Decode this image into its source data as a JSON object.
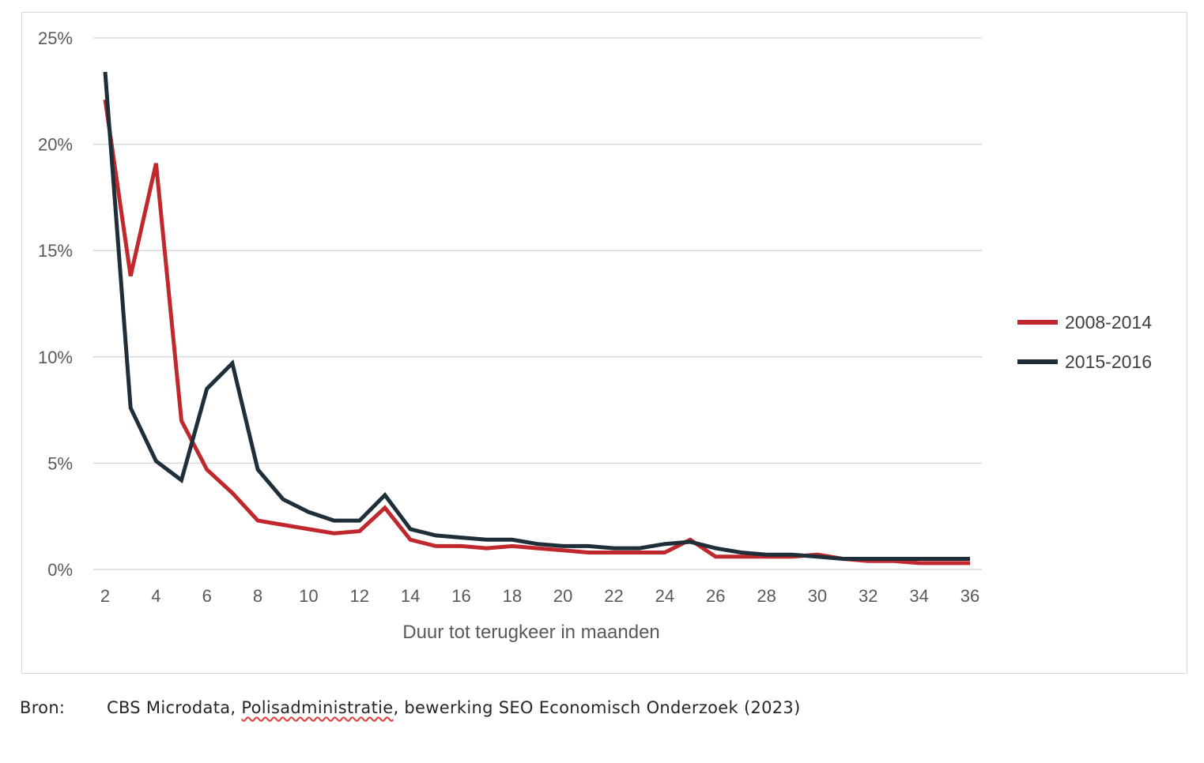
{
  "chart_data": {
    "type": "line",
    "title": "",
    "xlabel": "Duur tot terugkeer  in maanden",
    "ylabel": "",
    "ylim": [
      0,
      25
    ],
    "xlim": [
      2,
      36
    ],
    "grid": true,
    "legend_position": "right",
    "y_ticks": [
      "0%",
      "5%",
      "10%",
      "15%",
      "20%",
      "25%"
    ],
    "y_tick_values": [
      0,
      5,
      10,
      15,
      20,
      25
    ],
    "x_ticks": [
      "2",
      "4",
      "6",
      "8",
      "10",
      "12",
      "14",
      "16",
      "18",
      "20",
      "22",
      "24",
      "26",
      "28",
      "30",
      "32",
      "34",
      "36"
    ],
    "x_tick_values": [
      2,
      4,
      6,
      8,
      10,
      12,
      14,
      16,
      18,
      20,
      22,
      24,
      26,
      28,
      30,
      32,
      34,
      36
    ],
    "x": [
      2,
      3,
      4,
      5,
      6,
      7,
      8,
      9,
      10,
      11,
      12,
      13,
      14,
      15,
      16,
      17,
      18,
      19,
      20,
      21,
      22,
      23,
      24,
      25,
      26,
      27,
      28,
      29,
      30,
      31,
      32,
      33,
      34,
      35,
      36
    ],
    "series": [
      {
        "name": "2008-2014",
        "color": "#c0282d",
        "values": [
          22.1,
          13.8,
          19.1,
          7.0,
          4.7,
          3.6,
          2.3,
          2.1,
          1.9,
          1.7,
          1.8,
          2.9,
          1.4,
          1.1,
          1.1,
          1.0,
          1.1,
          1.0,
          0.9,
          0.8,
          0.8,
          0.8,
          0.8,
          1.4,
          0.6,
          0.6,
          0.6,
          0.6,
          0.7,
          0.5,
          0.4,
          0.4,
          0.3,
          0.3,
          0.3
        ]
      },
      {
        "name": "2015-2016",
        "color": "#1e2f3a",
        "values": [
          23.4,
          7.6,
          5.1,
          4.2,
          8.5,
          9.7,
          4.7,
          3.3,
          2.7,
          2.3,
          2.3,
          3.5,
          1.9,
          1.6,
          1.5,
          1.4,
          1.4,
          1.2,
          1.1,
          1.1,
          1.0,
          1.0,
          1.2,
          1.3,
          1.0,
          0.8,
          0.7,
          0.7,
          0.6,
          0.5,
          0.5,
          0.5,
          0.5,
          0.5,
          0.5
        ]
      }
    ]
  },
  "source": {
    "label": "Bron:",
    "text_pre": "CBS Microdata, ",
    "text_underlined": "Polisadministratie",
    "text_post": ", bewerking SEO Economisch Onderzoek (2023)"
  }
}
